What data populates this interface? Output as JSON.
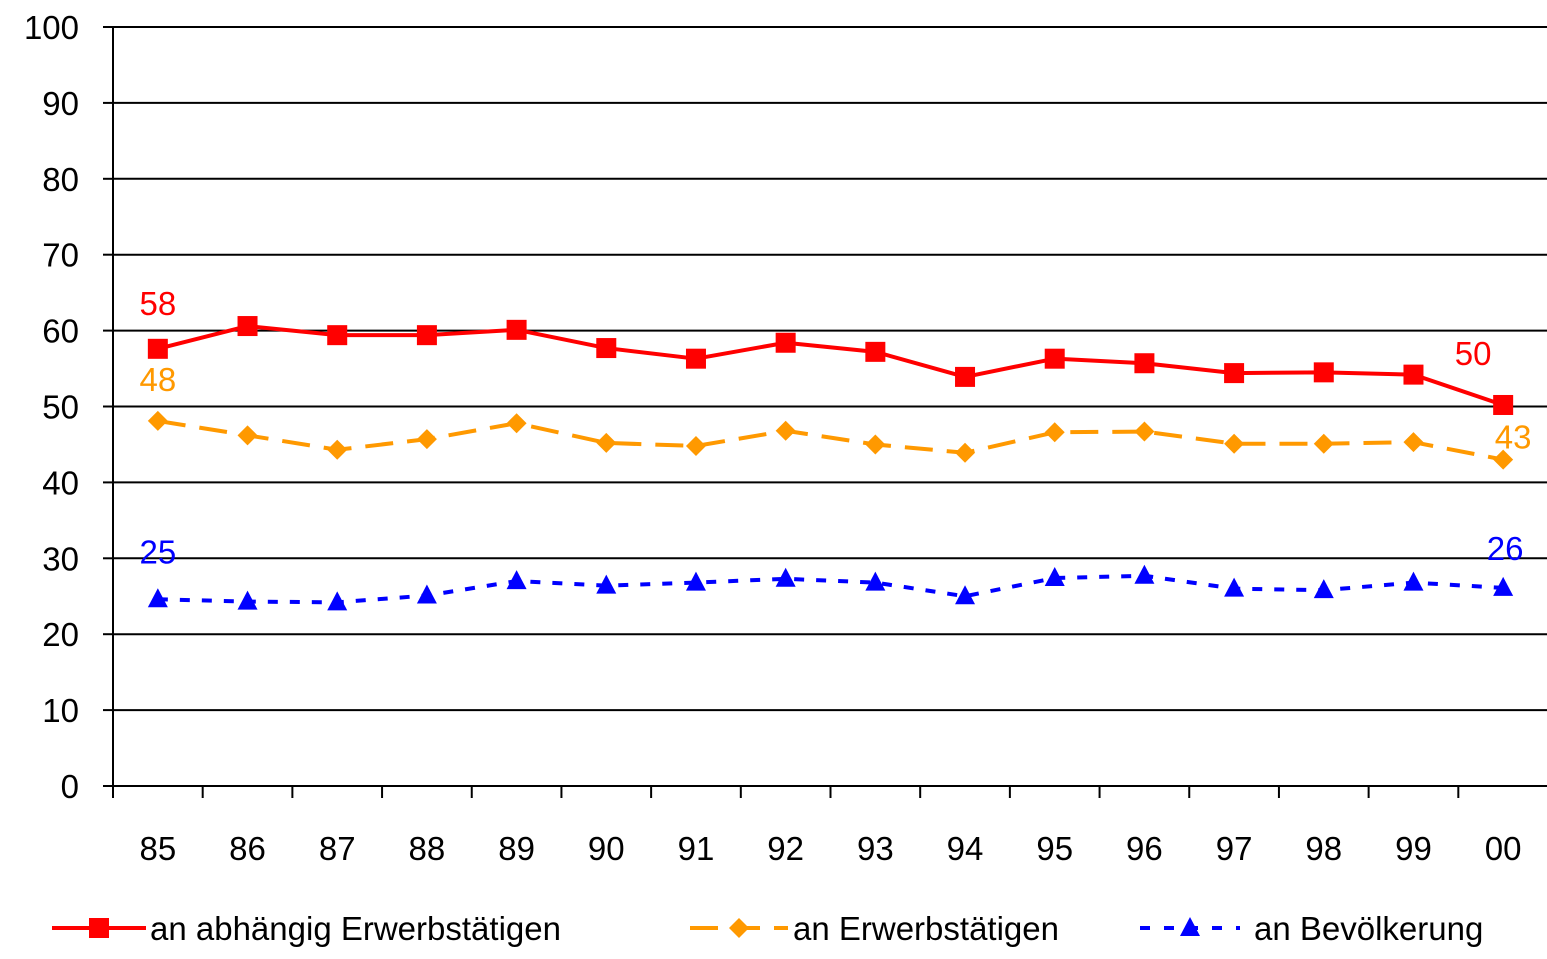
{
  "chart_data": {
    "type": "line",
    "title": "",
    "xlabel": "",
    "ylabel": "",
    "categories": [
      "85",
      "86",
      "87",
      "88",
      "89",
      "90",
      "91",
      "92",
      "93",
      "94",
      "95",
      "96",
      "97",
      "98",
      "99",
      "00"
    ],
    "ylim": [
      0,
      100
    ],
    "yticks": [
      0,
      10,
      20,
      30,
      40,
      50,
      60,
      70,
      80,
      90,
      100
    ],
    "grid": "horizontal",
    "legend_position": "bottom",
    "series": [
      {
        "name": "an abhängig Erwerbstätigen",
        "color": "#ff0000",
        "line_style": "solid",
        "marker": "square",
        "values": [
          57.6,
          60.6,
          59.4,
          59.4,
          60.1,
          57.7,
          56.3,
          58.4,
          57.2,
          53.9,
          56.3,
          55.7,
          54.4,
          54.5,
          54.2,
          50.2
        ],
        "labels": [
          {
            "index": 0,
            "text": "58"
          },
          {
            "index": 15,
            "text": "50"
          }
        ]
      },
      {
        "name": "an Erwerbstätigen",
        "color": "#ff9900",
        "line_style": "dashed",
        "marker": "diamond",
        "values": [
          48.1,
          46.2,
          44.3,
          45.7,
          47.8,
          45.2,
          44.8,
          46.8,
          45.0,
          43.9,
          46.6,
          46.7,
          45.1,
          45.1,
          45.3,
          43.0
        ],
        "labels": [
          {
            "index": 0,
            "text": "48"
          },
          {
            "index": 15,
            "text": "43"
          }
        ]
      },
      {
        "name": "an Bevölkerung",
        "color": "#0000ff",
        "line_style": "dotted",
        "marker": "triangle",
        "values": [
          24.6,
          24.3,
          24.2,
          25.1,
          27.0,
          26.4,
          26.8,
          27.3,
          26.8,
          25.0,
          27.4,
          27.7,
          26.0,
          25.8,
          26.8,
          26.1
        ],
        "labels": [
          {
            "index": 0,
            "text": "25"
          },
          {
            "index": 15,
            "text": "26"
          }
        ]
      }
    ]
  }
}
